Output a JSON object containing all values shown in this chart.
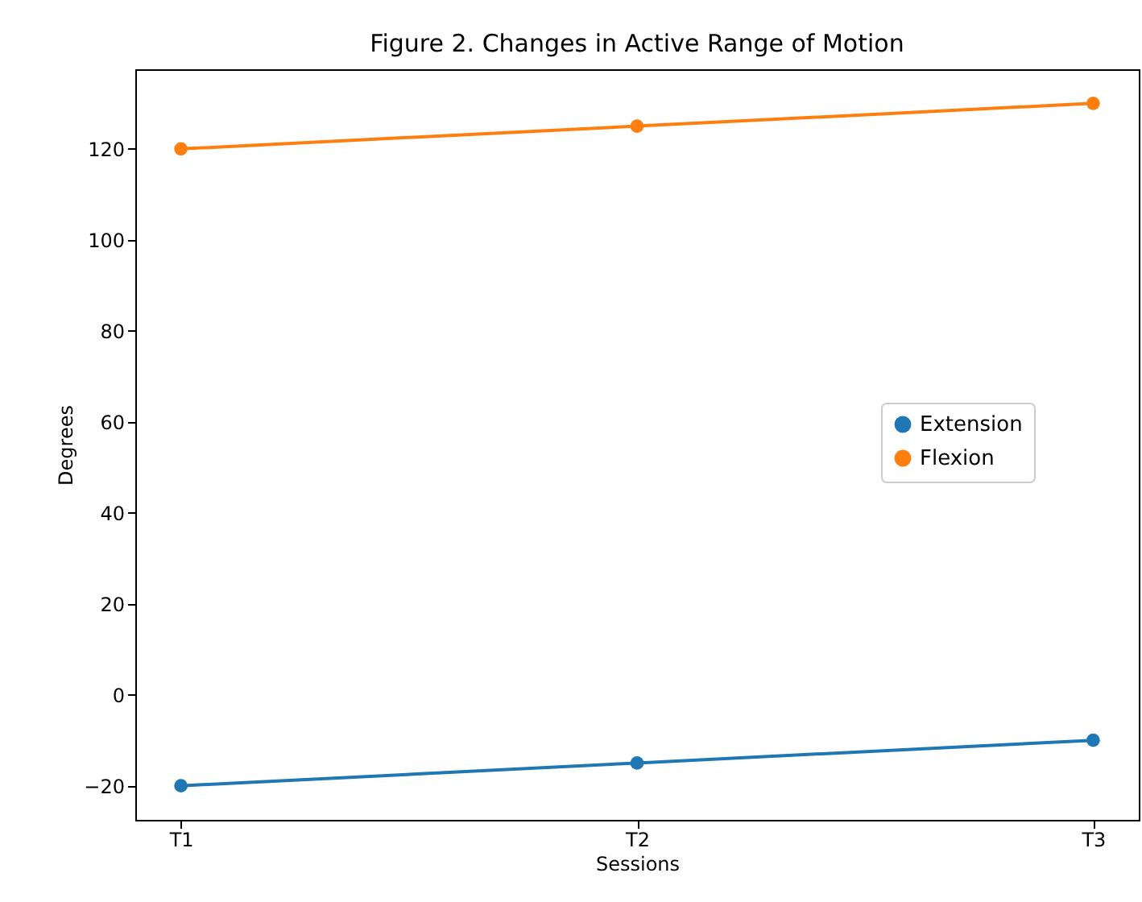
{
  "chart_data": {
    "type": "line",
    "title": "Figure 2. Changes in Active Range of Motion",
    "xlabel": "Sessions",
    "ylabel": "Degrees",
    "categories": [
      "T1",
      "T2",
      "T3"
    ],
    "series": [
      {
        "name": "Extension",
        "color": "#1f77b4",
        "values": [
          -20,
          -15,
          -10
        ]
      },
      {
        "name": "Flexion",
        "color": "#ff7f0e",
        "values": [
          120,
          125,
          130
        ]
      }
    ],
    "ylim": [
      -27.5,
      137.5
    ],
    "yticks": [
      -20,
      0,
      20,
      40,
      60,
      80,
      100,
      120
    ],
    "grid": false,
    "legend": "right",
    "marker": "circle",
    "line_style": "solid"
  }
}
